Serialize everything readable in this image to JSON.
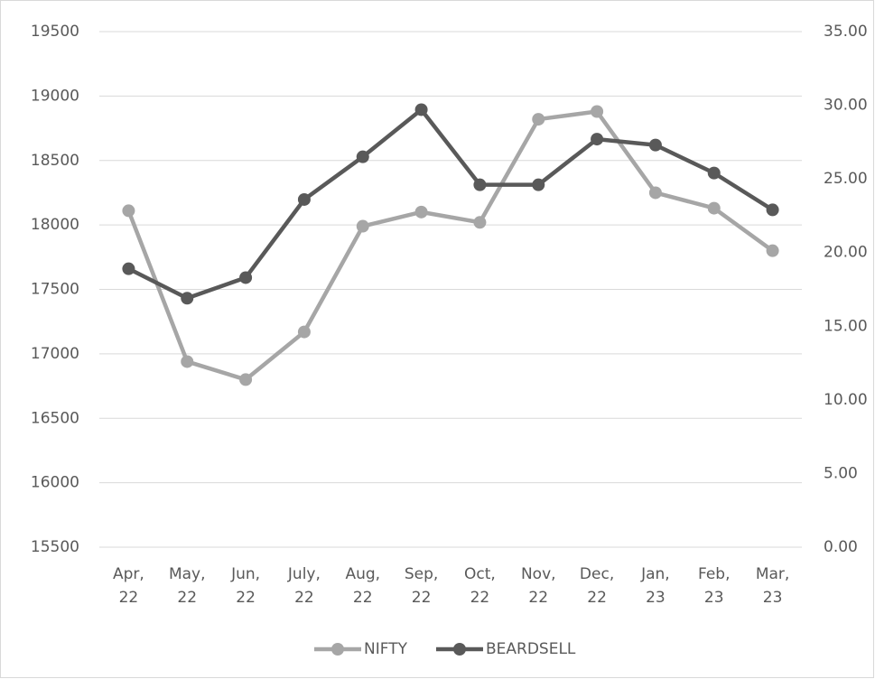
{
  "chart_data": {
    "type": "line",
    "categories": [
      "Apr, 22",
      "May, 22",
      "Jun, 22",
      "July, 22",
      "Aug, 22",
      "Sep, 22",
      "Oct, 22",
      "Nov, 22",
      "Dec, 22",
      "Jan, 23",
      "Feb, 23",
      "Mar, 23"
    ],
    "series": [
      {
        "name": "NIFTY",
        "color": "#a6a6a6",
        "values": [
          18110,
          16940,
          16800,
          17170,
          17990,
          18100,
          18020,
          18820,
          18880,
          18250,
          18130,
          17800
        ]
      },
      {
        "name": "BEARDSELL",
        "color": "#595959",
        "axis": "y2",
        "values": [
          18.9,
          16.9,
          18.3,
          23.6,
          26.5,
          29.7,
          24.6,
          24.6,
          27.7,
          27.3,
          25.4,
          22.9
        ]
      }
    ],
    "ylim": [
      15500,
      19500
    ],
    "yticks": [
      15500,
      16000,
      16500,
      17000,
      17500,
      18000,
      18500,
      19000,
      19500
    ],
    "y2lim": [
      0,
      35
    ],
    "y2ticks": [
      {
        "value": 0,
        "label": "0.00"
      },
      {
        "value": 5,
        "label": "5.00"
      },
      {
        "value": 10,
        "label": "10.00"
      },
      {
        "value": 15,
        "label": "15.00"
      },
      {
        "value": 20,
        "label": "20.00"
      },
      {
        "value": 25,
        "label": "25.00"
      },
      {
        "value": 30,
        "label": "30.00"
      },
      {
        "value": 35,
        "label": "35.00"
      }
    ],
    "grid": true,
    "legend": "bottom"
  }
}
